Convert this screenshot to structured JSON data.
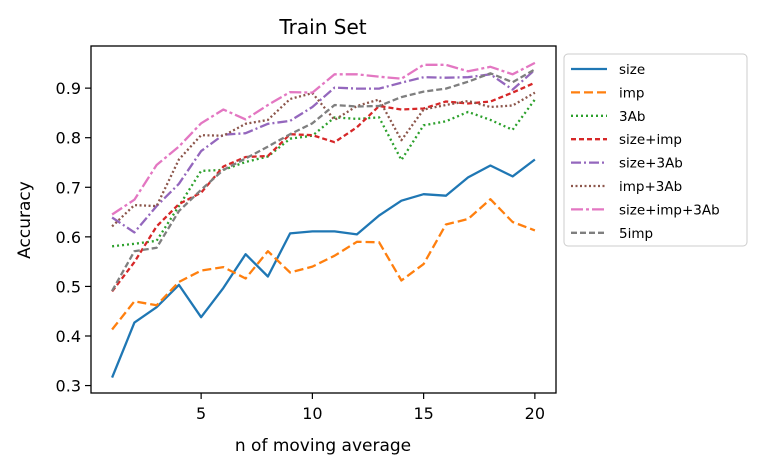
{
  "chart_data": {
    "type": "line",
    "title": "Train Set",
    "xlabel": "n of moving average",
    "ylabel": "Accuracy",
    "xlim": [
      0.05,
      20.95
    ],
    "ylim": [
      0.285,
      0.985
    ],
    "xticks": [
      5,
      10,
      15,
      20
    ],
    "yticks": [
      0.3,
      0.4,
      0.5,
      0.6,
      0.7,
      0.8,
      0.9
    ],
    "xtick_labels": [
      "5",
      "10",
      "15",
      "20"
    ],
    "ytick_labels": [
      "0.3",
      "0.4",
      "0.5",
      "0.6",
      "0.7",
      "0.8",
      "0.9"
    ],
    "grid": false,
    "legend_position": "outside-right-top",
    "x": [
      1,
      2,
      3,
      4,
      5,
      6,
      7,
      8,
      9,
      10,
      11,
      12,
      13,
      14,
      15,
      16,
      17,
      18,
      19,
      20
    ],
    "series": [
      {
        "name": "size",
        "color": "#1f77b4",
        "dash": "solid",
        "values": [
          0.316,
          0.427,
          0.458,
          0.503,
          0.438,
          0.497,
          0.565,
          0.52,
          0.607,
          0.611,
          0.611,
          0.605,
          0.643,
          0.673,
          0.686,
          0.683,
          0.72,
          0.744,
          0.722,
          0.756
        ]
      },
      {
        "name": "imp",
        "color": "#ff7f0e",
        "dash": "dashed",
        "values": [
          0.413,
          0.47,
          0.462,
          0.509,
          0.532,
          0.539,
          0.516,
          0.571,
          0.528,
          0.54,
          0.562,
          0.59,
          0.589,
          0.512,
          0.545,
          0.625,
          0.636,
          0.676,
          0.63,
          0.613
        ]
      },
      {
        "name": "3Ab",
        "color": "#2ca02c",
        "dash": "dotted",
        "values": [
          0.581,
          0.586,
          0.592,
          0.662,
          0.733,
          0.735,
          0.751,
          0.762,
          0.798,
          0.804,
          0.841,
          0.838,
          0.841,
          0.755,
          0.825,
          0.833,
          0.852,
          0.836,
          0.816,
          0.877
        ]
      },
      {
        "name": "size+imp",
        "color": "#d62728",
        "dash": "dashdot-dense",
        "values": [
          0.49,
          0.549,
          0.621,
          0.666,
          0.689,
          0.742,
          0.761,
          0.763,
          0.807,
          0.805,
          0.791,
          0.821,
          0.864,
          0.857,
          0.859,
          0.873,
          0.869,
          0.873,
          0.891,
          0.911
        ]
      },
      {
        "name": "size+3Ab",
        "color": "#9467bd",
        "dash": "dashdot",
        "values": [
          0.639,
          0.609,
          0.662,
          0.707,
          0.773,
          0.806,
          0.809,
          0.828,
          0.834,
          0.862,
          0.901,
          0.899,
          0.899,
          0.911,
          0.922,
          0.921,
          0.922,
          0.928,
          0.897,
          0.937
        ]
      },
      {
        "name": "imp+3Ab",
        "color": "#8c564b",
        "dash": "dotted-tight",
        "values": [
          0.621,
          0.664,
          0.662,
          0.756,
          0.805,
          0.804,
          0.828,
          0.836,
          0.878,
          0.89,
          0.836,
          0.864,
          0.877,
          0.795,
          0.857,
          0.866,
          0.874,
          0.862,
          0.865,
          0.891
        ]
      },
      {
        "name": "size+imp+3Ab",
        "color": "#e377c2",
        "dash": "dashdot-long",
        "values": [
          0.645,
          0.675,
          0.745,
          0.782,
          0.829,
          0.857,
          0.837,
          0.866,
          0.892,
          0.891,
          0.928,
          0.928,
          0.923,
          0.919,
          0.947,
          0.947,
          0.934,
          0.943,
          0.928,
          0.951
        ]
      },
      {
        "name": "5imp",
        "color": "#7f7f7f",
        "dash": "dashed-dense",
        "values": [
          0.491,
          0.571,
          0.578,
          0.652,
          0.695,
          0.735,
          0.758,
          0.782,
          0.807,
          0.829,
          0.866,
          0.863,
          0.864,
          0.882,
          0.893,
          0.899,
          0.913,
          0.93,
          0.912,
          0.938
        ]
      }
    ]
  }
}
